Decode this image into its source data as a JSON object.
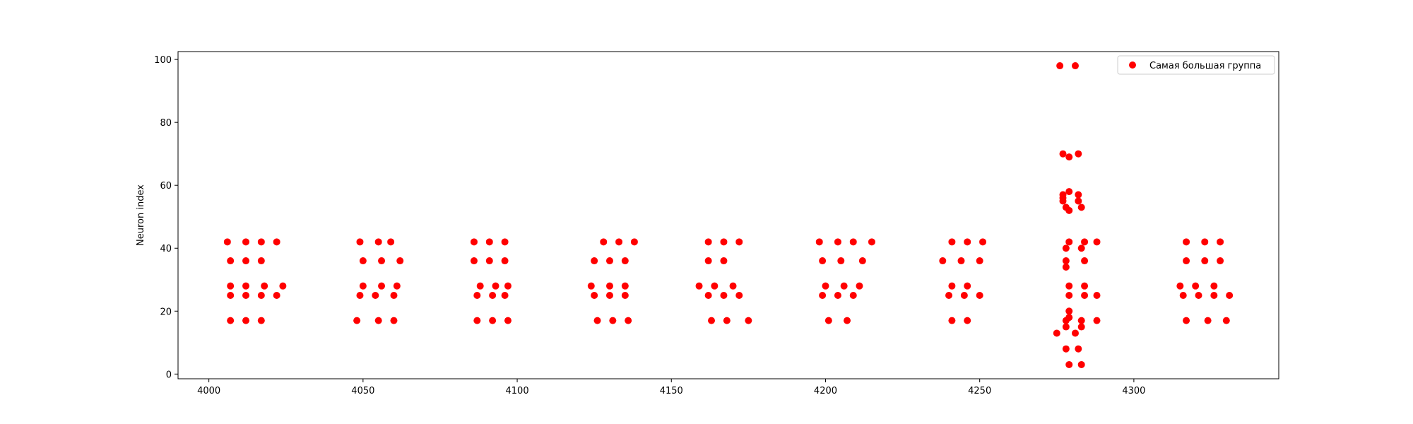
{
  "chart_data": {
    "type": "scatter",
    "title": "",
    "xlabel": "",
    "ylabel": "Neuron index",
    "xlim": [
      3990,
      4347
    ],
    "ylim": [
      -1.5,
      102.5
    ],
    "xticks": [
      4000,
      4050,
      4100,
      4150,
      4200,
      4250,
      4300
    ],
    "yticks": [
      0,
      20,
      40,
      60,
      80,
      100
    ],
    "grid": false,
    "legend": {
      "position": "top-right"
    },
    "series": [
      {
        "name": "Самая большая группа",
        "color": "#ff0000",
        "points": [
          [
            4006,
            42
          ],
          [
            4012,
            42
          ],
          [
            4017,
            42
          ],
          [
            4022,
            42
          ],
          [
            4007,
            36
          ],
          [
            4012,
            36
          ],
          [
            4017,
            36
          ],
          [
            4007,
            28
          ],
          [
            4012,
            28
          ],
          [
            4018,
            28
          ],
          [
            4024,
            28
          ],
          [
            4007,
            25
          ],
          [
            4012,
            25
          ],
          [
            4017,
            25
          ],
          [
            4022,
            25
          ],
          [
            4007,
            17
          ],
          [
            4012,
            17
          ],
          [
            4017,
            17
          ],
          [
            4049,
            42
          ],
          [
            4055,
            42
          ],
          [
            4059,
            42
          ],
          [
            4050,
            36
          ],
          [
            4056,
            36
          ],
          [
            4062,
            36
          ],
          [
            4050,
            28
          ],
          [
            4056,
            28
          ],
          [
            4061,
            28
          ],
          [
            4049,
            25
          ],
          [
            4054,
            25
          ],
          [
            4060,
            25
          ],
          [
            4048,
            17
          ],
          [
            4055,
            17
          ],
          [
            4060,
            17
          ],
          [
            4086,
            42
          ],
          [
            4091,
            42
          ],
          [
            4096,
            42
          ],
          [
            4086,
            36
          ],
          [
            4091,
            36
          ],
          [
            4096,
            36
          ],
          [
            4088,
            28
          ],
          [
            4093,
            28
          ],
          [
            4097,
            28
          ],
          [
            4087,
            25
          ],
          [
            4092,
            25
          ],
          [
            4096,
            25
          ],
          [
            4087,
            17
          ],
          [
            4092,
            17
          ],
          [
            4097,
            17
          ],
          [
            4128,
            42
          ],
          [
            4133,
            42
          ],
          [
            4138,
            42
          ],
          [
            4125,
            36
          ],
          [
            4130,
            36
          ],
          [
            4135,
            36
          ],
          [
            4124,
            28
          ],
          [
            4130,
            28
          ],
          [
            4135,
            28
          ],
          [
            4125,
            25
          ],
          [
            4130,
            25
          ],
          [
            4135,
            25
          ],
          [
            4126,
            17
          ],
          [
            4131,
            17
          ],
          [
            4136,
            17
          ],
          [
            4162,
            42
          ],
          [
            4167,
            42
          ],
          [
            4172,
            42
          ],
          [
            4162,
            36
          ],
          [
            4167,
            36
          ],
          [
            4159,
            28
          ],
          [
            4164,
            28
          ],
          [
            4170,
            28
          ],
          [
            4162,
            25
          ],
          [
            4167,
            25
          ],
          [
            4172,
            25
          ],
          [
            4163,
            17
          ],
          [
            4168,
            17
          ],
          [
            4175,
            17
          ],
          [
            4198,
            42
          ],
          [
            4204,
            42
          ],
          [
            4209,
            42
          ],
          [
            4215,
            42
          ],
          [
            4199,
            36
          ],
          [
            4205,
            36
          ],
          [
            4212,
            36
          ],
          [
            4200,
            28
          ],
          [
            4206,
            28
          ],
          [
            4211,
            28
          ],
          [
            4199,
            25
          ],
          [
            4204,
            25
          ],
          [
            4209,
            25
          ],
          [
            4201,
            17
          ],
          [
            4207,
            17
          ],
          [
            4241,
            42
          ],
          [
            4246,
            42
          ],
          [
            4251,
            42
          ],
          [
            4238,
            36
          ],
          [
            4244,
            36
          ],
          [
            4250,
            36
          ],
          [
            4241,
            28
          ],
          [
            4246,
            28
          ],
          [
            4240,
            25
          ],
          [
            4245,
            25
          ],
          [
            4250,
            25
          ],
          [
            4241,
            17
          ],
          [
            4246,
            17
          ],
          [
            4276,
            98
          ],
          [
            4281,
            98
          ],
          [
            4277,
            70
          ],
          [
            4279,
            69
          ],
          [
            4282,
            70
          ],
          [
            4277,
            57
          ],
          [
            4279,
            58
          ],
          [
            4282,
            57
          ],
          [
            4277,
            56
          ],
          [
            4277,
            55
          ],
          [
            4282,
            55
          ],
          [
            4278,
            53
          ],
          [
            4279,
            52
          ],
          [
            4283,
            53
          ],
          [
            4279,
            42
          ],
          [
            4284,
            42
          ],
          [
            4288,
            42
          ],
          [
            4278,
            40
          ],
          [
            4283,
            40
          ],
          [
            4278,
            36
          ],
          [
            4278,
            34
          ],
          [
            4284,
            36
          ],
          [
            4279,
            28
          ],
          [
            4284,
            28
          ],
          [
            4279,
            25
          ],
          [
            4284,
            25
          ],
          [
            4288,
            25
          ],
          [
            4279,
            20
          ],
          [
            4279,
            18
          ],
          [
            4278,
            17
          ],
          [
            4283,
            17
          ],
          [
            4288,
            17
          ],
          [
            4278,
            15
          ],
          [
            4283,
            15
          ],
          [
            4275,
            13
          ],
          [
            4281,
            13
          ],
          [
            4278,
            8
          ],
          [
            4282,
            8
          ],
          [
            4279,
            3
          ],
          [
            4283,
            3
          ],
          [
            4317,
            42
          ],
          [
            4323,
            42
          ],
          [
            4328,
            42
          ],
          [
            4317,
            36
          ],
          [
            4323,
            36
          ],
          [
            4328,
            36
          ],
          [
            4315,
            28
          ],
          [
            4320,
            28
          ],
          [
            4326,
            28
          ],
          [
            4316,
            25
          ],
          [
            4321,
            25
          ],
          [
            4326,
            25
          ],
          [
            4331,
            25
          ],
          [
            4317,
            17
          ],
          [
            4324,
            17
          ],
          [
            4330,
            17
          ]
        ]
      }
    ]
  }
}
